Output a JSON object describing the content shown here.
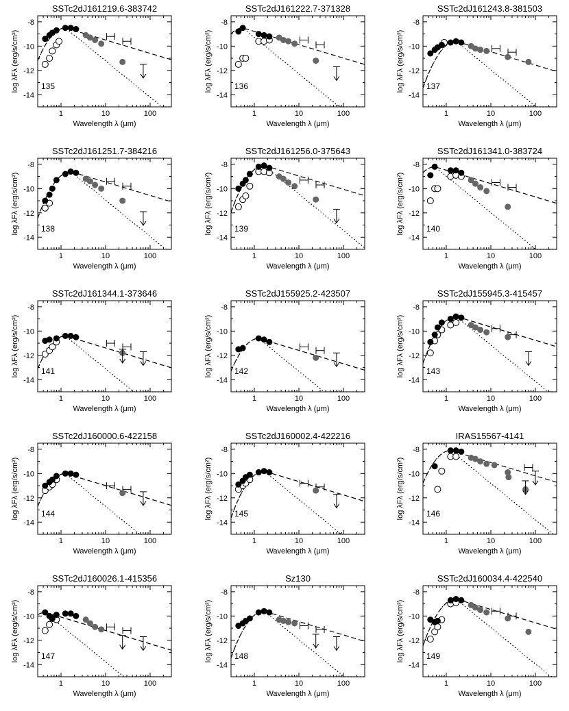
{
  "figure": {
    "x_axis_label": "Wavelength λ (μm)",
    "y_axis_label": "log λFλ (erg/s/cm²)",
    "x_ticks": [
      "1",
      "10",
      "100"
    ],
    "y_ticks": [
      "-8",
      "-10",
      "-12",
      "-14"
    ],
    "colors": {
      "filled": "#000000",
      "gray": "#666666",
      "open": "#ffffff"
    }
  },
  "chart_data": [
    {
      "type": "scatter",
      "id": "135",
      "title": "SSTc2dJ161219.6-383742",
      "xlim": [
        0.3,
        300
      ],
      "ylim": [
        -15,
        -7.5
      ],
      "xscale": "log",
      "filled": [
        [
          0.44,
          -9.4
        ],
        [
          0.55,
          -9.1
        ],
        [
          0.64,
          -8.9
        ],
        [
          0.79,
          -8.7
        ],
        [
          1.25,
          -8.5
        ],
        [
          1.65,
          -8.5
        ],
        [
          2.17,
          -8.6
        ]
      ],
      "open": [
        [
          0.44,
          -11.5
        ],
        [
          0.55,
          -11
        ],
        [
          0.64,
          -10.4
        ],
        [
          0.79,
          -9.9
        ],
        [
          0.9,
          -9.6
        ]
      ],
      "gray": [
        [
          3.6,
          -9.1
        ],
        [
          4.5,
          -9.3
        ],
        [
          5.8,
          -9.5
        ],
        [
          8,
          -9.8
        ],
        [
          24,
          -11.3
        ]
      ],
      "upper_limits": [
        [
          70,
          -11.5
        ]
      ],
      "irs_bars": [
        [
          13,
          -9.2
        ],
        [
          30,
          -9.6
        ]
      ]
    },
    {
      "type": "scatter",
      "id": "136",
      "title": "SSTc2dJ161222.7-371328",
      "xlim": [
        0.3,
        300
      ],
      "ylim": [
        -15,
        -7.5
      ],
      "xscale": "log",
      "filled": [
        [
          0.44,
          -8.8
        ],
        [
          0.55,
          -8.5
        ],
        [
          1.25,
          -9
        ],
        [
          1.65,
          -9.1
        ],
        [
          2.17,
          -9.2
        ]
      ],
      "open": [
        [
          0.44,
          -11.5
        ],
        [
          0.55,
          -11
        ],
        [
          0.64,
          -11
        ],
        [
          1.25,
          -9.6
        ],
        [
          1.65,
          -9.6
        ],
        [
          2.17,
          -9.5
        ]
      ],
      "gray": [
        [
          3.6,
          -9.3
        ],
        [
          4.5,
          -9.5
        ],
        [
          5.8,
          -9.6
        ],
        [
          8,
          -9.8
        ],
        [
          24,
          -11.2
        ]
      ],
      "upper_limits": [
        [
          70,
          -11.7
        ]
      ],
      "irs_bars": [
        [
          13,
          -9.5
        ],
        [
          30,
          -9.9
        ]
      ]
    },
    {
      "type": "scatter",
      "id": "137",
      "title": "SSTc2dJ161243.8-381503",
      "xlim": [
        0.3,
        300
      ],
      "ylim": [
        -15,
        -7.5
      ],
      "xscale": "log",
      "filled": [
        [
          0.44,
          -10.6
        ],
        [
          0.55,
          -10.3
        ],
        [
          0.64,
          -10.1
        ],
        [
          0.79,
          -9.9
        ],
        [
          1.25,
          -9.7
        ],
        [
          1.65,
          -9.6
        ],
        [
          2.17,
          -9.7
        ]
      ],
      "open": [
        [
          0.9,
          -9.7
        ]
      ],
      "gray": [
        [
          3.6,
          -10
        ],
        [
          4.5,
          -10.2
        ],
        [
          5.8,
          -10.3
        ],
        [
          8,
          -10.4
        ],
        [
          24,
          -10.9
        ],
        [
          70,
          -11.3
        ]
      ],
      "upper_limits": [],
      "irs_bars": [
        [
          13,
          -10.2
        ],
        [
          30,
          -10.5
        ]
      ]
    },
    {
      "type": "scatter",
      "id": "138",
      "title": "SSTc2dJ161251.7-384216",
      "xlim": [
        0.3,
        300
      ],
      "ylim": [
        -15,
        -7.5
      ],
      "xscale": "log",
      "filled": [
        [
          0.44,
          -11
        ],
        [
          0.55,
          -10.5
        ],
        [
          0.64,
          -10
        ],
        [
          0.79,
          -9.3
        ],
        [
          1.25,
          -8.8
        ],
        [
          1.65,
          -8.6
        ],
        [
          2.17,
          -8.7
        ]
      ],
      "open": [
        [
          0.44,
          -11.6
        ],
        [
          0.55,
          -11.2
        ]
      ],
      "gray": [
        [
          3.6,
          -9.2
        ],
        [
          4.5,
          -9.4
        ],
        [
          5.8,
          -9.7
        ],
        [
          8,
          -10
        ],
        [
          24,
          -11
        ]
      ],
      "upper_limits": [
        [
          70,
          -11.9
        ]
      ],
      "irs_bars": [
        [
          13,
          -9.4
        ],
        [
          30,
          -9.8
        ]
      ]
    },
    {
      "type": "scatter",
      "id": "139",
      "title": "SSTc2dJ161256.0-375643",
      "xlim": [
        0.3,
        300
      ],
      "ylim": [
        -15,
        -7.5
      ],
      "xscale": "log",
      "filled": [
        [
          0.44,
          -10
        ],
        [
          0.55,
          -9.6
        ],
        [
          0.64,
          -9.3
        ],
        [
          0.79,
          -8.8
        ],
        [
          1.25,
          -8.2
        ],
        [
          1.65,
          -8.1
        ],
        [
          2.17,
          -8.3
        ]
      ],
      "open": [
        [
          0.44,
          -11.5
        ],
        [
          0.55,
          -10.9
        ],
        [
          0.64,
          -10.6
        ],
        [
          0.79,
          -9.8
        ],
        [
          1.25,
          -8.6
        ],
        [
          1.65,
          -8.6
        ],
        [
          2.17,
          -8.7
        ]
      ],
      "gray": [
        [
          3.6,
          -9
        ],
        [
          4.5,
          -9.2
        ],
        [
          5.8,
          -9.5
        ],
        [
          8,
          -9.8
        ],
        [
          24,
          -10.9
        ]
      ],
      "upper_limits": [
        [
          70,
          -11.7
        ]
      ],
      "irs_bars": [
        [
          13,
          -9.3
        ],
        [
          30,
          -9.7
        ]
      ]
    },
    {
      "type": "scatter",
      "id": "140",
      "title": "SSTc2dJ161341.0-383724",
      "xlim": [
        0.3,
        300
      ],
      "ylim": [
        -15,
        -7.5
      ],
      "xscale": "log",
      "filled": [
        [
          0.44,
          -8.9
        ],
        [
          0.55,
          -8.2
        ],
        [
          1.25,
          -8.5
        ],
        [
          1.65,
          -8.5
        ],
        [
          2.17,
          -8.7
        ]
      ],
      "open": [
        [
          0.44,
          -11
        ],
        [
          0.55,
          -10
        ],
        [
          0.64,
          -10
        ],
        [
          1.25,
          -9
        ],
        [
          1.65,
          -8.9
        ],
        [
          2.17,
          -9
        ]
      ],
      "gray": [
        [
          3.6,
          -9.3
        ],
        [
          4.5,
          -9.6
        ],
        [
          5.8,
          -9.9
        ],
        [
          8,
          -10.2
        ],
        [
          24,
          -11.5
        ]
      ],
      "upper_limits": [],
      "irs_bars": [
        [
          13,
          -9.5
        ],
        [
          30,
          -9.9
        ]
      ]
    },
    {
      "type": "scatter",
      "id": "141",
      "title": "SSTc2dJ161344.1-373646",
      "xlim": [
        0.3,
        300
      ],
      "ylim": [
        -15,
        -7.5
      ],
      "xscale": "log",
      "filled": [
        [
          0.44,
          -10.8
        ],
        [
          0.55,
          -10.7
        ],
        [
          0.79,
          -10.6
        ],
        [
          1.25,
          -10.4
        ],
        [
          1.65,
          -10.4
        ],
        [
          2.17,
          -10.5
        ]
      ],
      "open": [
        [
          0.44,
          -11.9
        ],
        [
          0.55,
          -11.6
        ],
        [
          0.64,
          -11.3
        ],
        [
          0.79,
          -10.9
        ]
      ],
      "gray": [
        [
          24,
          -11.8
        ]
      ],
      "upper_limits": [
        [
          24,
          -11.5
        ],
        [
          70,
          -11.7
        ]
      ],
      "irs_bars": [
        [
          13,
          -11
        ],
        [
          30,
          -11.3
        ]
      ]
    },
    {
      "type": "scatter",
      "id": "142",
      "title": "SSTc2dJ155925.2-423507",
      "xlim": [
        0.3,
        300
      ],
      "ylim": [
        -15,
        -7.5
      ],
      "xscale": "log",
      "filled": [
        [
          0.44,
          -11.5
        ],
        [
          0.55,
          -11.4
        ],
        [
          1.25,
          -10.6
        ],
        [
          1.65,
          -10.7
        ],
        [
          2.17,
          -10.9
        ]
      ],
      "open": [],
      "gray": [
        [
          24,
          -12.2
        ]
      ],
      "upper_limits": [
        [
          70,
          -11.8
        ]
      ],
      "irs_bars": [
        [
          13,
          -11.3
        ],
        [
          30,
          -11.6
        ]
      ]
    },
    {
      "type": "scatter",
      "id": "143",
      "title": "SSTc2dJ155945.3-415457",
      "xlim": [
        0.3,
        300
      ],
      "ylim": [
        -15,
        -7.5
      ],
      "xscale": "log",
      "filled": [
        [
          0.44,
          -10.9
        ],
        [
          0.55,
          -10.3
        ],
        [
          0.64,
          -9.7
        ],
        [
          0.79,
          -9.3
        ],
        [
          1.25,
          -9
        ],
        [
          1.65,
          -8.8
        ],
        [
          2.17,
          -8.9
        ]
      ],
      "open": [
        [
          0.44,
          -11.8
        ],
        [
          0.55,
          -10.8
        ],
        [
          0.64,
          -10.3
        ],
        [
          0.79,
          -9.9
        ],
        [
          1.25,
          -9.5
        ],
        [
          1.65,
          -9.3
        ]
      ],
      "gray": [
        [
          3.6,
          -9.5
        ],
        [
          4.5,
          -9.7
        ],
        [
          5.8,
          -9.9
        ],
        [
          8,
          -10.1
        ],
        [
          24,
          -10.5
        ]
      ],
      "upper_limits": [
        [
          70,
          -11.7
        ]
      ],
      "irs_bars": [
        [
          13,
          -9.8
        ],
        [
          30,
          -10.3
        ]
      ]
    },
    {
      "type": "scatter",
      "id": "144",
      "title": "SSTc2dJ160000.6-422158",
      "xlim": [
        0.3,
        300
      ],
      "ylim": [
        -15,
        -7.5
      ],
      "xscale": "log",
      "filled": [
        [
          0.44,
          -11
        ],
        [
          0.55,
          -10.7
        ],
        [
          0.64,
          -10.5
        ],
        [
          0.79,
          -10.2
        ],
        [
          1.25,
          -10
        ],
        [
          1.65,
          -10
        ],
        [
          2.17,
          -10.1
        ]
      ],
      "open": [
        [
          0.44,
          -11.4
        ],
        [
          0.55,
          -11.1
        ],
        [
          0.64,
          -10.9
        ],
        [
          0.79,
          -10.5
        ]
      ],
      "gray": [
        [
          24,
          -11.6
        ]
      ],
      "upper_limits": [
        [
          70,
          -11.5
        ]
      ],
      "irs_bars": [
        [
          13,
          -11
        ],
        [
          30,
          -11.3
        ]
      ]
    },
    {
      "type": "scatter",
      "id": "145",
      "title": "SSTc2dJ160002.4-422216",
      "xlim": [
        0.3,
        300
      ],
      "ylim": [
        -15,
        -7.5
      ],
      "xscale": "log",
      "filled": [
        [
          0.44,
          -10.9
        ],
        [
          0.55,
          -10.6
        ],
        [
          0.64,
          -10.3
        ],
        [
          0.79,
          -10.1
        ],
        [
          1.25,
          -9.9
        ],
        [
          1.65,
          -9.8
        ],
        [
          2.17,
          -9.9
        ]
      ],
      "open": [
        [
          0.44,
          -11.3
        ],
        [
          0.55,
          -11
        ],
        [
          0.64,
          -10.8
        ],
        [
          0.79,
          -10.5
        ]
      ],
      "gray": [
        [
          24,
          -11.4
        ]
      ],
      "upper_limits": [
        [
          70,
          -11.7
        ]
      ],
      "irs_bars": [
        [
          13,
          -10.8
        ],
        [
          30,
          -11.1
        ]
      ]
    },
    {
      "type": "scatter",
      "id": "146",
      "title": "IRAS15567-4141",
      "xlim": [
        0.3,
        300
      ],
      "ylim": [
        -15,
        -7.5
      ],
      "xscale": "log",
      "filled": [
        [
          0.55,
          -9.4
        ],
        [
          1.25,
          -8.1
        ],
        [
          1.65,
          -8.1
        ],
        [
          2.17,
          -8.2
        ]
      ],
      "open": [
        [
          0.64,
          -11.3
        ],
        [
          0.79,
          -9.8
        ],
        [
          1.25,
          -8.6
        ],
        [
          1.65,
          -8.6
        ]
      ],
      "gray": [
        [
          3.6,
          -8.7
        ],
        [
          4.5,
          -8.8
        ],
        [
          5.8,
          -9
        ],
        [
          8,
          -9.2
        ],
        [
          12,
          -9.3
        ],
        [
          24,
          -9.9
        ],
        [
          25,
          -10.3
        ],
        [
          60,
          -11.3
        ]
      ],
      "upper_limits": [
        [
          60,
          -10.6
        ],
        [
          100,
          -9.8
        ]
      ],
      "irs_bars": [
        [
          70,
          -9.5
        ]
      ]
    },
    {
      "type": "scatter",
      "id": "147",
      "title": "SSTc2dJ160026.1-415356",
      "xlim": [
        0.3,
        300
      ],
      "ylim": [
        -15,
        -7.5
      ],
      "xscale": "log",
      "filled": [
        [
          0.44,
          -9.7
        ],
        [
          0.55,
          -10
        ],
        [
          0.64,
          -10.2
        ],
        [
          0.79,
          -9.9
        ],
        [
          1.25,
          -9.8
        ],
        [
          1.65,
          -9.8
        ],
        [
          2.17,
          -10
        ]
      ],
      "open": [
        [
          0.44,
          -11.2
        ],
        [
          0.55,
          -10.7
        ],
        [
          0.64,
          -10.2
        ],
        [
          0.79,
          -10.3
        ]
      ],
      "gray": [
        [
          3.6,
          -10.3
        ],
        [
          4.5,
          -10.6
        ],
        [
          5.8,
          -10.9
        ],
        [
          8,
          -11.1
        ]
      ],
      "upper_limits": [
        [
          24,
          -11.6
        ],
        [
          70,
          -11.7
        ]
      ],
      "irs_bars": [
        [
          13,
          -10.9
        ],
        [
          30,
          -11.2
        ]
      ]
    },
    {
      "type": "scatter",
      "id": "148",
      "title": "Sz130",
      "xlim": [
        0.3,
        300
      ],
      "ylim": [
        -15,
        -7.5
      ],
      "xscale": "log",
      "filled": [
        [
          0.44,
          -10.8
        ],
        [
          0.55,
          -10.6
        ],
        [
          0.64,
          -10.4
        ],
        [
          0.79,
          -10.2
        ],
        [
          1.25,
          -9.7
        ],
        [
          1.65,
          -9.6
        ],
        [
          2.17,
          -9.7
        ]
      ],
      "open": [],
      "gray": [
        [
          3.6,
          -10.3
        ],
        [
          4.5,
          -10.4
        ],
        [
          5.8,
          -10.5
        ],
        [
          8,
          -10.6
        ]
      ],
      "upper_limits": [
        [
          24,
          -11.5
        ],
        [
          70,
          -11.7
        ]
      ],
      "irs_bars": [
        [
          13,
          -10.8
        ],
        [
          30,
          -11.1
        ]
      ]
    },
    {
      "type": "scatter",
      "id": "149",
      "title": "SSTc2dJ160034.4-422540",
      "xlim": [
        0.3,
        300
      ],
      "ylim": [
        -15,
        -7.5
      ],
      "xscale": "log",
      "filled": [
        [
          0.44,
          -10.3
        ],
        [
          0.55,
          -10.5
        ],
        [
          0.64,
          -10.4
        ],
        [
          1.25,
          -8.7
        ],
        [
          1.65,
          -8.6
        ],
        [
          2.17,
          -8.7
        ]
      ],
      "open": [
        [
          0.44,
          -11.9
        ],
        [
          0.55,
          -11.3
        ],
        [
          0.64,
          -10.9
        ],
        [
          0.79,
          -10.3
        ],
        [
          1.25,
          -9
        ],
        [
          1.65,
          -8.9
        ]
      ],
      "gray": [
        [
          3.6,
          -9.1
        ],
        [
          4.5,
          -9.3
        ],
        [
          5.8,
          -9.5
        ],
        [
          8,
          -9.7
        ],
        [
          24,
          -10.2
        ],
        [
          70,
          -11.3
        ]
      ],
      "upper_limits": [],
      "irs_bars": [
        [
          13,
          -9.6
        ],
        [
          30,
          -10
        ]
      ]
    }
  ]
}
